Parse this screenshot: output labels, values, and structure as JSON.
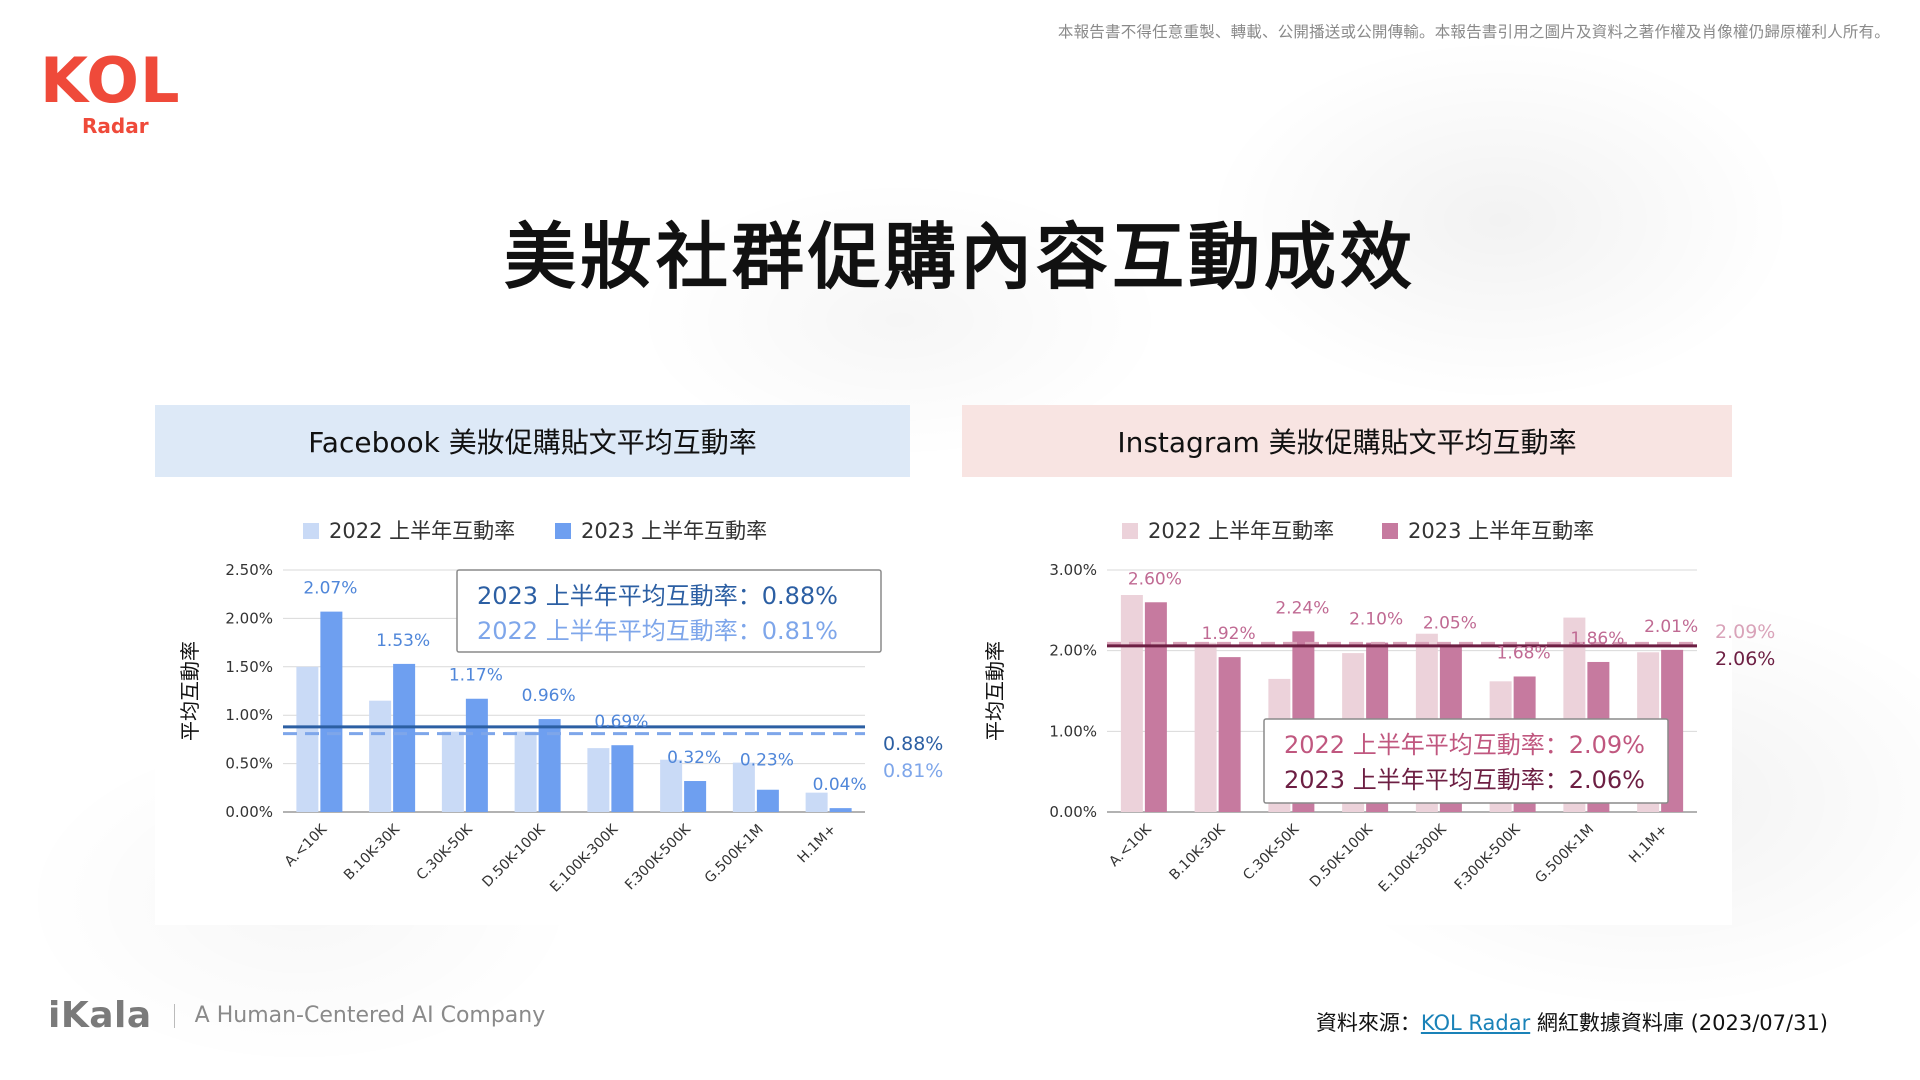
{
  "header": {
    "copyright": "本報告書不得任意重製、轉載、公開播送或公開傳輸。本報告書引用之圖片及資料之著作權及肖像權仍歸原權利人所有。",
    "logo_main": "KOL",
    "logo_sub": "Radar"
  },
  "title": "美妝社群促購內容互動成效",
  "footer": {
    "brand": "iKala",
    "tagline": "A Human-Centered AI Company",
    "source_prefix": "資料來源：",
    "source_link": "KOL Radar",
    "source_suffix": " 網紅數據資料庫 (2023/07/31)"
  },
  "colors": {
    "fb_header_bg": "#dde9f7",
    "ig_header_bg": "#f8e4e2",
    "logo_red": "#ef4a3a"
  },
  "chart_data": [
    {
      "type": "bar",
      "title": "Facebook 美妝促購貼文平均互動率",
      "ylabel": "平均互動率",
      "xlabel": "",
      "ylim": [
        0,
        2.5
      ],
      "yticks": [
        0,
        0.5,
        1.0,
        1.5,
        2.0,
        2.5
      ],
      "yticklabels": [
        "0.00%",
        "0.50%",
        "1.00%",
        "1.50%",
        "2.00%",
        "2.50%"
      ],
      "categories": [
        "A.<10K",
        "B.10K-30K",
        "C.30K-50K",
        "D.50K-100K",
        "E.100K-300K",
        "F.300K-500K",
        "G.500K-1M",
        "H.1M+"
      ],
      "series": [
        {
          "name": "2022 上半年互動率",
          "color": "#c9daf6",
          "values": [
            1.5,
            1.15,
            0.83,
            0.83,
            0.66,
            0.54,
            0.51,
            0.2
          ],
          "labels": null
        },
        {
          "name": "2023 上半年互動率",
          "color": "#6e9ff0",
          "values": [
            2.07,
            1.53,
            1.17,
            0.96,
            0.69,
            0.32,
            0.23,
            0.04
          ],
          "labels": [
            "2.07%",
            "1.53%",
            "1.17%",
            "0.96%",
            "0.69%",
            "0.32%",
            "0.23%",
            "0.04%"
          ]
        }
      ],
      "reference_lines": [
        {
          "value": 0.88,
          "label": "0.88%",
          "style": "solid",
          "color": "#2c5fa3"
        },
        {
          "value": 0.81,
          "label": "0.81%",
          "style": "dashed",
          "color": "#7ea6ea"
        }
      ],
      "annotation_box": [
        {
          "text": "2023 上半年平均互動率：0.88%",
          "color": "#2c5fa3"
        },
        {
          "text": "2022 上半年平均互動率：0.81%",
          "color": "#7ea6ea"
        }
      ],
      "legend_position": "top",
      "grid": true
    },
    {
      "type": "bar",
      "title": "Instagram 美妝促購貼文平均互動率",
      "ylabel": "平均互動率",
      "xlabel": "",
      "ylim": [
        0,
        3.0
      ],
      "yticks": [
        0,
        1.0,
        2.0,
        3.0
      ],
      "yticklabels": [
        "0.00%",
        "1.00%",
        "2.00%",
        "3.00%"
      ],
      "categories": [
        "A.<10K",
        "B.10K-30K",
        "C.30K-50K",
        "D.50K-100K",
        "E.100K-300K",
        "F.300K-500K",
        "G.500K-1M",
        "H.1M+"
      ],
      "series": [
        {
          "name": "2022 上半年互動率",
          "color": "#ecd2da",
          "values": [
            2.69,
            2.1,
            1.65,
            1.97,
            2.21,
            1.62,
            2.41,
            1.98
          ],
          "labels": null
        },
        {
          "name": "2023 上半年互動率",
          "color": "#c67a9f",
          "values": [
            2.6,
            1.92,
            2.24,
            2.1,
            2.05,
            1.68,
            1.86,
            2.01
          ],
          "labels": [
            "2.60%",
            "1.92%",
            "2.24%",
            "2.10%",
            "2.05%",
            "1.68%",
            "1.86%",
            "2.01%"
          ]
        }
      ],
      "reference_lines": [
        {
          "value": 2.09,
          "label": "2.09%",
          "style": "dashed",
          "color": "#d9a3b9"
        },
        {
          "value": 2.06,
          "label": "2.06%",
          "style": "solid",
          "color": "#6d1f43"
        }
      ],
      "annotation_box": [
        {
          "text": "2022 上半年平均互動率：2.09%",
          "color": "#c0577f"
        },
        {
          "text": "2023 上半年平均互動率：2.06%",
          "color": "#6d1f43"
        }
      ],
      "legend_position": "top",
      "grid": true
    }
  ]
}
